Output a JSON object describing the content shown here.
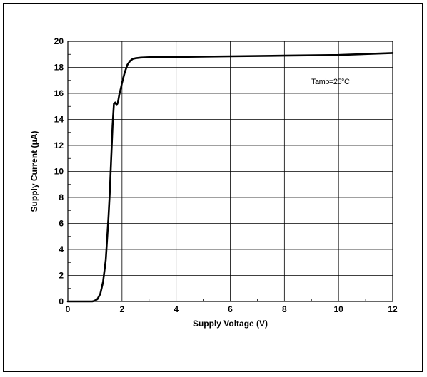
{
  "chart_data": {
    "type": "line",
    "title": "",
    "xlabel": "Supply Voltage (V)",
    "ylabel": "Supply Current (μA)",
    "xlim": [
      0,
      12
    ],
    "ylim": [
      0,
      20
    ],
    "xticks": [
      0,
      2,
      4,
      6,
      8,
      10,
      12
    ],
    "yticks": [
      0,
      2,
      4,
      6,
      8,
      10,
      12,
      14,
      16,
      18,
      20
    ],
    "grid": true,
    "annotation": "Tamb=25°C",
    "series": [
      {
        "x": [
          0,
          0.9,
          1.0,
          1.1,
          1.2,
          1.3,
          1.4,
          1.5,
          1.55,
          1.6,
          1.65,
          1.7,
          1.75,
          1.8,
          1.85,
          1.9,
          1.95,
          2.0,
          2.1,
          2.2,
          2.3,
          2.4,
          2.5,
          2.7,
          3.0,
          4.0,
          6.0,
          8.0,
          10.0,
          12.0
        ],
        "y": [
          0,
          0,
          0.05,
          0.2,
          0.6,
          1.5,
          3.2,
          6.5,
          8.5,
          11.0,
          13.5,
          15.2,
          15.3,
          15.1,
          15.3,
          15.9,
          16.3,
          16.8,
          17.6,
          18.2,
          18.5,
          18.65,
          18.7,
          18.75,
          18.78,
          18.8,
          18.85,
          18.9,
          18.95,
          19.1
        ]
      }
    ]
  }
}
